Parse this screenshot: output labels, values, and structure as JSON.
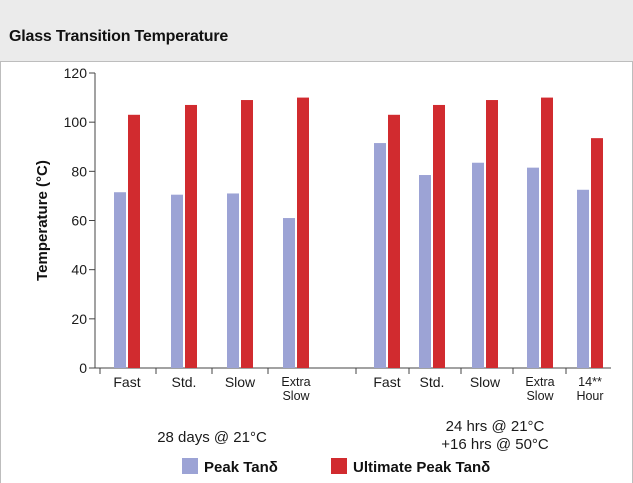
{
  "header": {
    "title": "Glass Transition Temperature"
  },
  "legend": {
    "peak_label": "Peak Tanδ",
    "ultimate_label": "Ultimate Peak Tanδ"
  },
  "colors": {
    "peak": "#9ca3d5",
    "ultimate": "#d12b2f",
    "axis": "#444444",
    "header_bg": "#ebebeb"
  },
  "chart_data": {
    "type": "bar",
    "ylabel": "Temperature (°C)",
    "ylim": [
      0,
      120
    ],
    "yticks": [
      0,
      20,
      40,
      60,
      80,
      100,
      120
    ],
    "grid": false,
    "legend_position": "bottom",
    "categories": [
      "Fast",
      "Std.",
      "Slow",
      "Extra Slow",
      "Fast",
      "Std.",
      "Slow",
      "Extra Slow",
      "14** Hour"
    ],
    "groups": [
      {
        "label": "28 days @ 21°C",
        "categories": [
          "Fast",
          "Std.",
          "Slow",
          "Extra Slow"
        ]
      },
      {
        "label": "24 hrs @ 21°C +16 hrs @ 50°C",
        "categories": [
          "Fast",
          "Std.",
          "Slow",
          "Extra Slow",
          "14** Hour"
        ]
      }
    ],
    "series": [
      {
        "name": "Peak Tanδ",
        "values": [
          71.5,
          70.5,
          71,
          61,
          91.5,
          78.5,
          83.5,
          81.5,
          72.5
        ]
      },
      {
        "name": "Ultimate Peak Tanδ",
        "values": [
          103,
          107,
          109,
          110,
          103,
          107,
          109,
          110,
          93.5
        ]
      }
    ]
  }
}
